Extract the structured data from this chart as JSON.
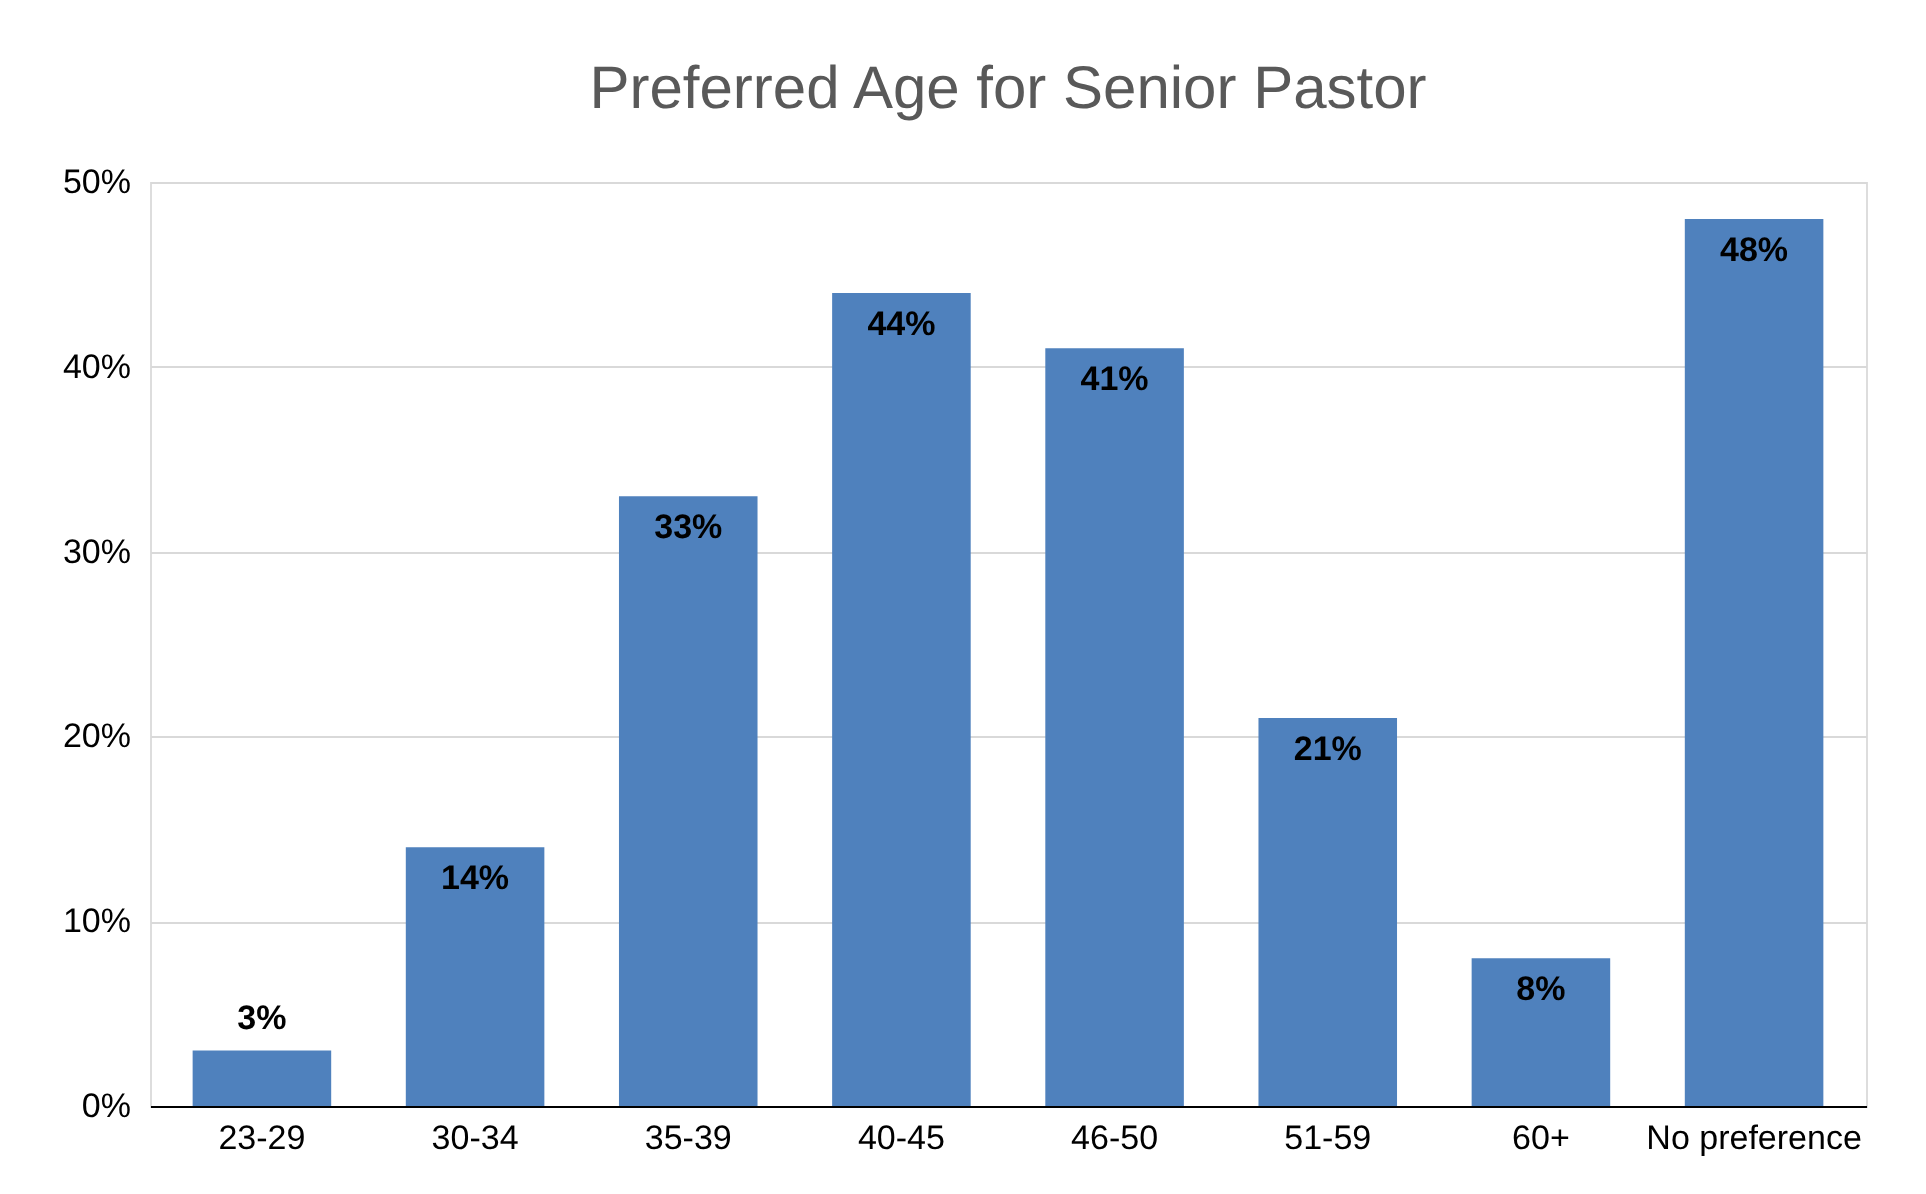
{
  "chart_data": {
    "type": "bar",
    "title": "Preferred Age for Senior Pastor",
    "categories": [
      "23-29",
      "30-34",
      "35-39",
      "40-45",
      "46-50",
      "51-59",
      "60+",
      "No preference"
    ],
    "values": [
      3,
      14,
      33,
      44,
      41,
      21,
      8,
      48
    ],
    "value_labels": [
      "3%",
      "14%",
      "33%",
      "44%",
      "41%",
      "21%",
      "8%",
      "48%"
    ],
    "color": "#4f81bd",
    "ylim": [
      0,
      50
    ],
    "yticks": [
      {
        "value": 0,
        "label": "0%"
      },
      {
        "value": 10,
        "label": "10%"
      },
      {
        "value": 20,
        "label": "20%"
      },
      {
        "value": 30,
        "label": "30%"
      },
      {
        "value": 40,
        "label": "40%"
      },
      {
        "value": 50,
        "label": "50%"
      }
    ],
    "grid": "y"
  }
}
